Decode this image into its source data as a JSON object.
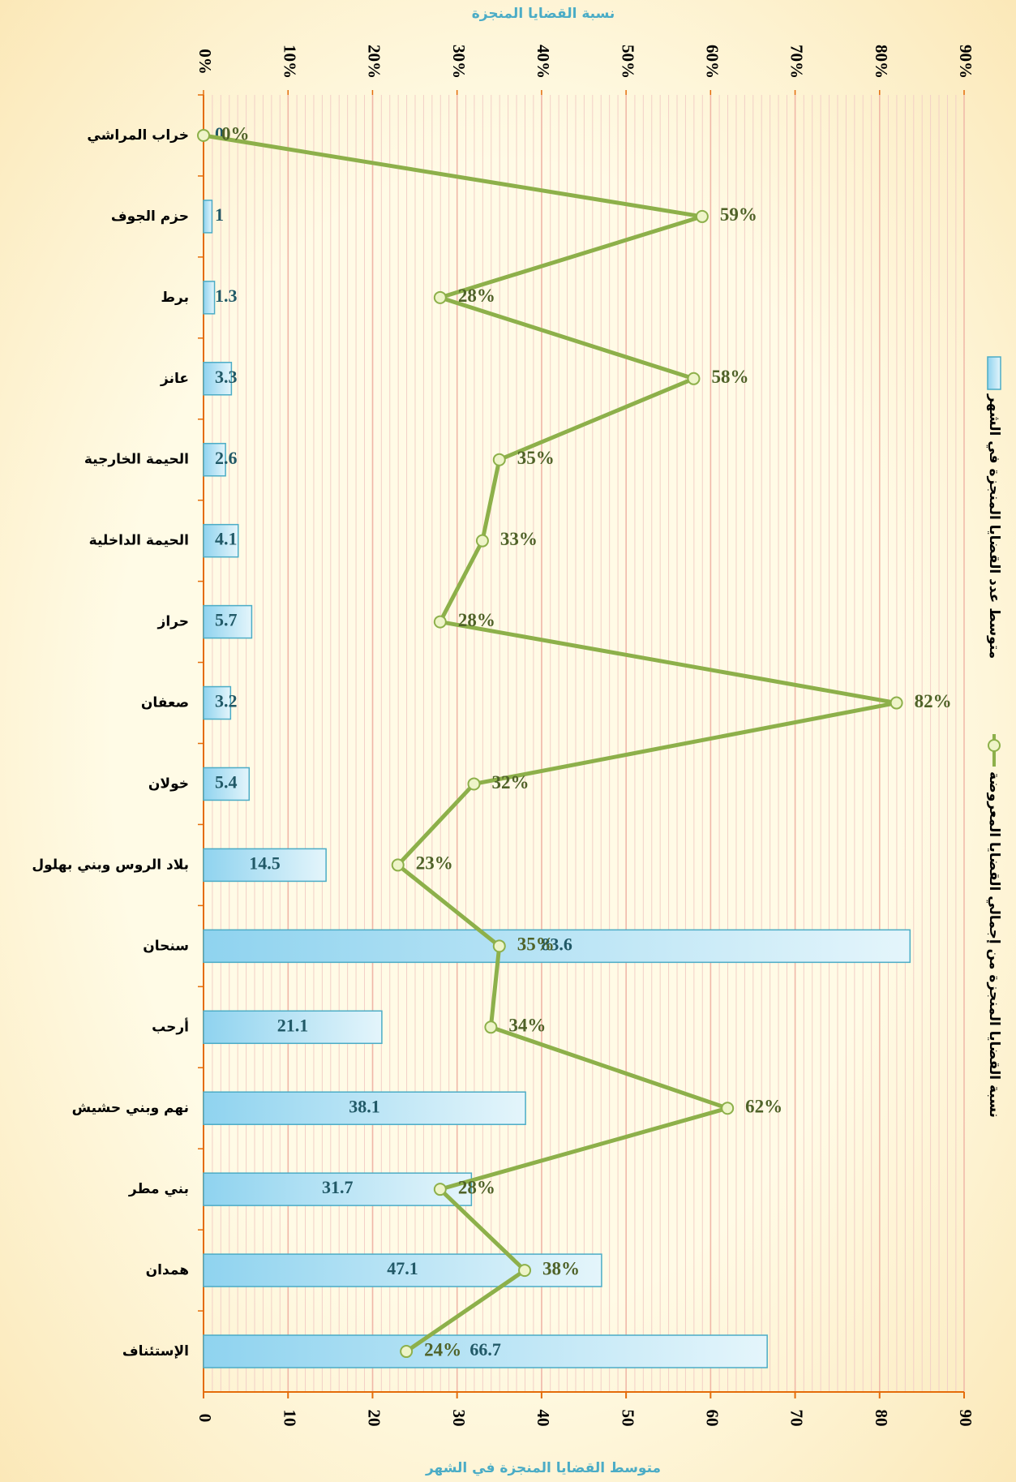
{
  "chart_data": {
    "type": "bar-line",
    "title_top": "نسبة القضايا المنجزة",
    "title_bottom": "متوسط القضايا المنجزة في الشهر",
    "categories": [
      "خراب المراشي",
      "حزم الجوف",
      "برط",
      "عانز",
      "الحيمة الخارجية",
      "الحيمة الداخلية",
      "حراز",
      "صعفان",
      "خولان",
      "بلاد الروس وبني بهلول",
      "سنحان",
      "أرحب",
      "نهم وبني حشيش",
      "بني مطر",
      "همدان",
      "الإستئناف"
    ],
    "series": [
      {
        "name": "متوسط عدد القضايا المنجزة في الشهر",
        "type": "bar",
        "color": "#a9dcf0",
        "values": [
          0,
          1,
          1.3,
          3.3,
          2.6,
          4.1,
          5.7,
          3.2,
          5.4,
          14.5,
          83.6,
          21.1,
          38.1,
          31.7,
          47.1,
          66.7
        ]
      },
      {
        "name": "نسبة القضايا المنجزة من إجمالي القضايا المعروضة",
        "type": "line",
        "color": "#8db04a",
        "axis": "y2",
        "values": [
          0,
          59,
          28,
          58,
          35,
          33,
          28,
          82,
          32,
          23,
          35,
          34,
          62,
          28,
          38,
          24
        ],
        "value_labels": [
          "0%",
          "59%",
          "28%",
          "58%",
          "35%",
          "33%",
          "28%",
          "82%",
          "32%",
          "23%",
          "35%",
          "34%",
          "62%",
          "28%",
          "38%",
          "24%"
        ]
      }
    ],
    "ylim": [
      0,
      90
    ],
    "yticks": [
      0,
      10,
      20,
      30,
      40,
      50,
      60,
      70,
      80,
      90
    ],
    "y2lim": [
      0,
      90
    ],
    "y2ticks": [
      {
        "value": 0,
        "label": "0%"
      },
      {
        "value": 10,
        "label": "10%"
      },
      {
        "value": 20,
        "label": "20%"
      },
      {
        "value": 30,
        "label": "30%"
      },
      {
        "value": 40,
        "label": "40%"
      },
      {
        "value": 50,
        "label": "50%"
      },
      {
        "value": 60,
        "label": "60%"
      },
      {
        "value": 70,
        "label": "70%"
      },
      {
        "value": 80,
        "label": "80%"
      },
      {
        "value": 90,
        "label": "90%"
      }
    ],
    "orientation": "horizontal",
    "grid": true
  }
}
